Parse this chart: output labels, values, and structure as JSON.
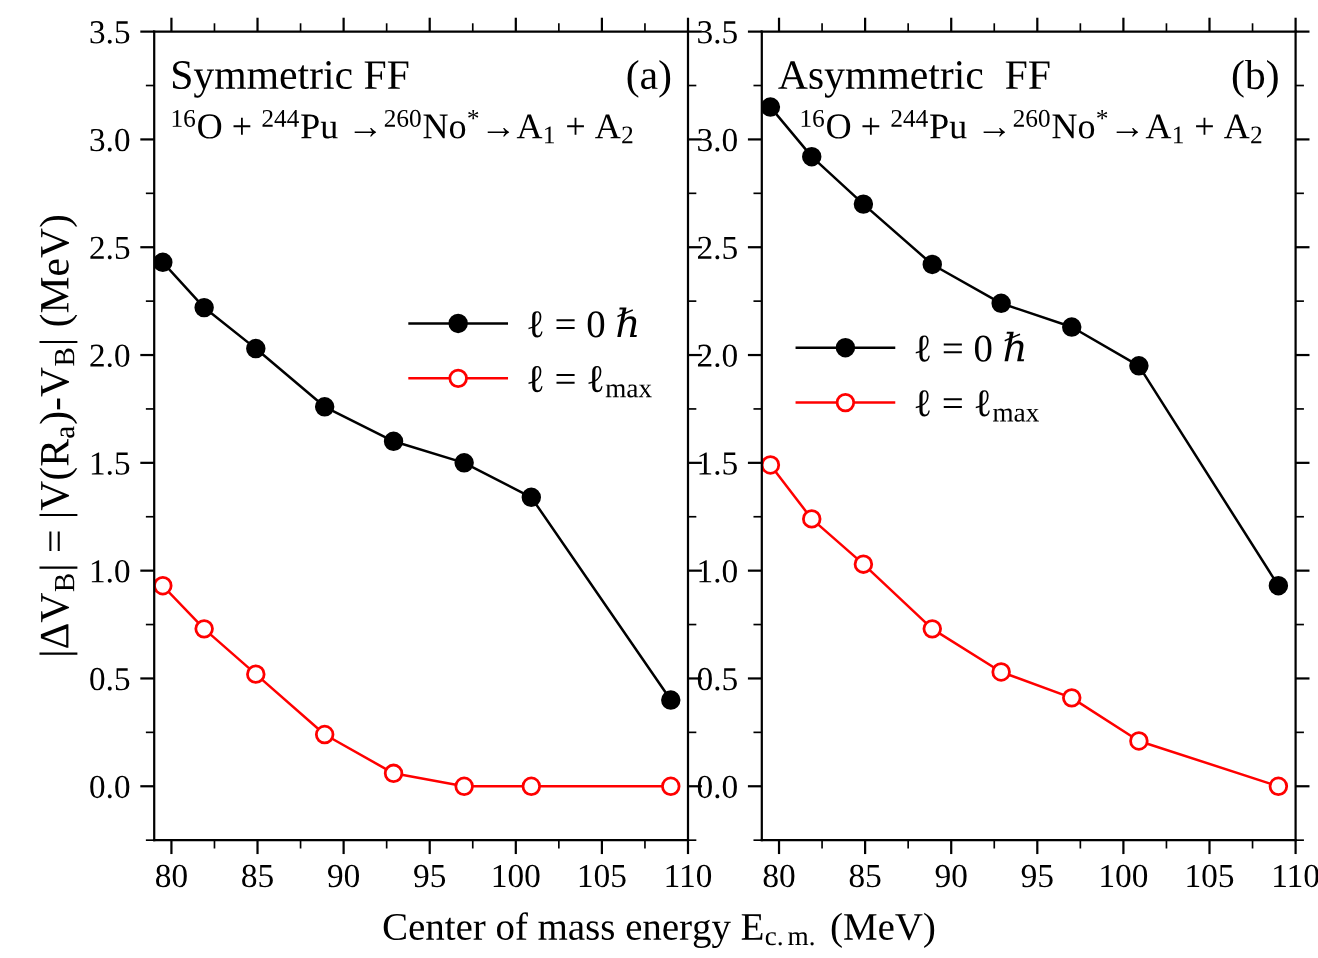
{
  "chart_data": [
    {
      "type": "line",
      "title": "Symmetric FF",
      "annotations": [
        "(a)",
        "$^{16}$O + $^{244}$Pu →$^{260}$No$^{*}$→A$_{1}$ + A$_{2}$"
      ],
      "xlabel": "Center of mass energy E$_{c.m.}$ (MeV)",
      "ylabel": "|ΔV$_{B}$| = |V(R$_{a}$)-V$_{B}$| (MeV)",
      "x": [
        79.5,
        81.9,
        84.9,
        88.9,
        92.9,
        97.0,
        100.9,
        109.0
      ],
      "series": [
        {
          "name": "ℓ = 0 ℏ",
          "color": "#000000",
          "marker": "circle",
          "values": [
            2.43,
            2.22,
            2.03,
            1.76,
            1.6,
            1.5,
            1.34,
            0.4
          ]
        },
        {
          "name": "ℓ = ℓ$_{max}$",
          "color": "#ff0000",
          "marker": "circle",
          "values": [
            0.93,
            0.73,
            0.52,
            0.24,
            0.06,
            0.0,
            0.0,
            0.0
          ]
        }
      ],
      "xlim": [
        79,
        110
      ],
      "xticks": [
        80,
        85,
        90,
        95,
        100,
        105,
        110
      ],
      "ylim": [
        -0.25,
        3.5
      ],
      "yticks": [
        {
          "value": 0,
          "label": "0.0"
        },
        0.5,
        {
          "value": 1,
          "label": "1.0"
        },
        1.5,
        {
          "value": 2,
          "label": "2.0"
        },
        2.5,
        {
          "value": 3,
          "label": "3.0"
        },
        3.5
      ],
      "legend": "center right"
    },
    {
      "type": "line",
      "title": "Asymmetric  FF",
      "annotations": [
        "(b)",
        "$^{16}$O + $^{244}$Pu →$^{260}$No$^{*}$→A$_{1}$ + A$_{2}$"
      ],
      "x": [
        79.5,
        81.9,
        84.9,
        88.9,
        92.9,
        97.0,
        100.9,
        109.0
      ],
      "series": [
        {
          "name": "ℓ = 0 ℏ",
          "color": "#000000",
          "marker": "circle",
          "values": [
            3.15,
            2.92,
            2.7,
            2.42,
            2.24,
            2.13,
            1.95,
            0.93
          ]
        },
        {
          "name": "ℓ = ℓ$_{max}$",
          "color": "#ff0000",
          "marker": "circle",
          "values": [
            1.49,
            1.24,
            1.03,
            0.73,
            0.53,
            0.41,
            0.21,
            0.0
          ]
        }
      ],
      "xlim": [
        79,
        110
      ],
      "xticks": [
        80,
        85,
        90,
        95,
        100,
        105,
        110
      ],
      "ylim": [
        -0.25,
        3.5
      ],
      "yticks": [
        {
          "value": 0,
          "label": "0.0"
        },
        0.5,
        {
          "value": 1,
          "label": "1.0"
        },
        1.5,
        {
          "value": 2,
          "label": "2.0"
        },
        2.5,
        {
          "value": 3,
          "label": "3.0"
        },
        3.5
      ],
      "legend": "center left"
    }
  ]
}
